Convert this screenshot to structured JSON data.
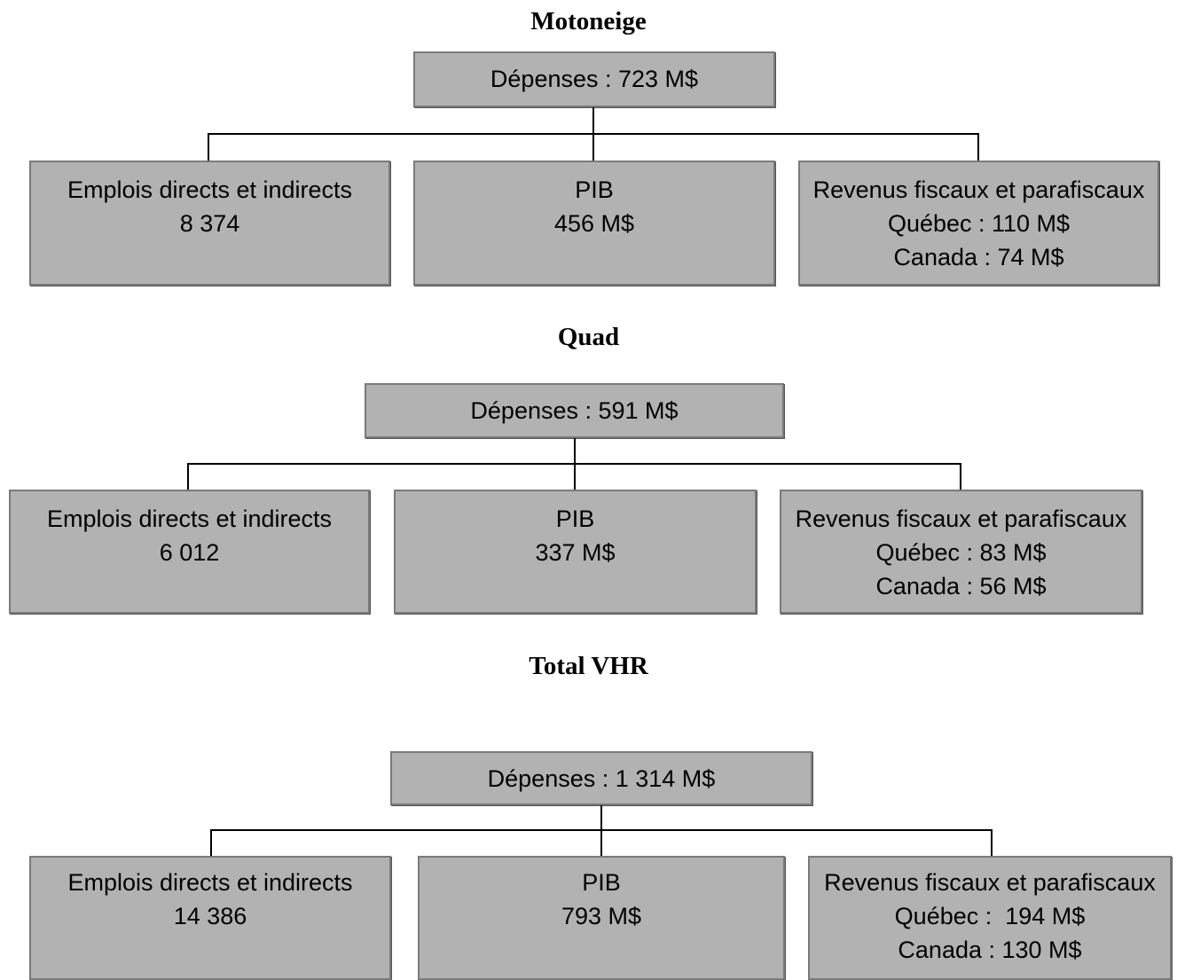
{
  "sections": [
    {
      "title": "Motoneige",
      "root": "Dépenses : 723 M$",
      "children": [
        {
          "lines": [
            "Emplois directs et indirects",
            "8 374"
          ]
        },
        {
          "lines": [
            "PIB",
            "456 M$"
          ]
        },
        {
          "lines": [
            "Revenus fiscaux et parafiscaux",
            "Québec : 110 M$",
            "Canada : 74 M$"
          ]
        }
      ]
    },
    {
      "title": "Quad",
      "root": "Dépenses : 591 M$",
      "children": [
        {
          "lines": [
            "Emplois directs et indirects",
            "6 012"
          ]
        },
        {
          "lines": [
            "PIB",
            "337 M$"
          ]
        },
        {
          "lines": [
            "Revenus fiscaux et parafiscaux",
            "Québec : 83 M$",
            "Canada : 56 M$"
          ]
        }
      ]
    },
    {
      "title": "Total VHR",
      "root": "Dépenses : 1 314 M$",
      "children": [
        {
          "lines": [
            "Emplois directs et indirects",
            "14 386"
          ]
        },
        {
          "lines": [
            "PIB",
            "793 M$"
          ]
        },
        {
          "lines": [
            "Revenus fiscaux et parafiscaux",
            "Québec :  194 M$",
            "Canada : 130 M$"
          ]
        }
      ]
    }
  ]
}
